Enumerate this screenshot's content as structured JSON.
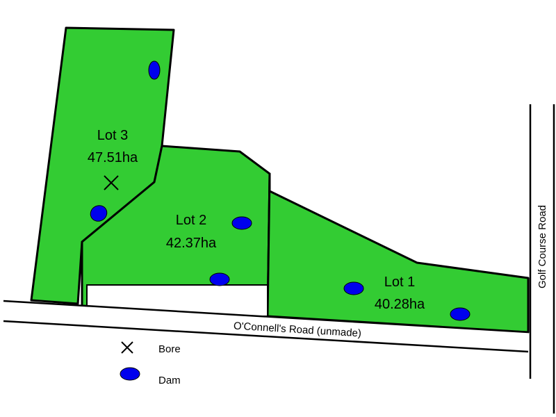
{
  "lots": [
    {
      "name": "Lot 3",
      "area": "47.51ha"
    },
    {
      "name": "Lot 2",
      "area": "42.37ha"
    },
    {
      "name": "Lot 1",
      "area": "40.28ha"
    }
  ],
  "roads": [
    "O'Connell's Road (unmade)",
    "Golf Course Road"
  ],
  "legend": [
    {
      "label": "Bore"
    },
    {
      "label": "Dam"
    }
  ]
}
